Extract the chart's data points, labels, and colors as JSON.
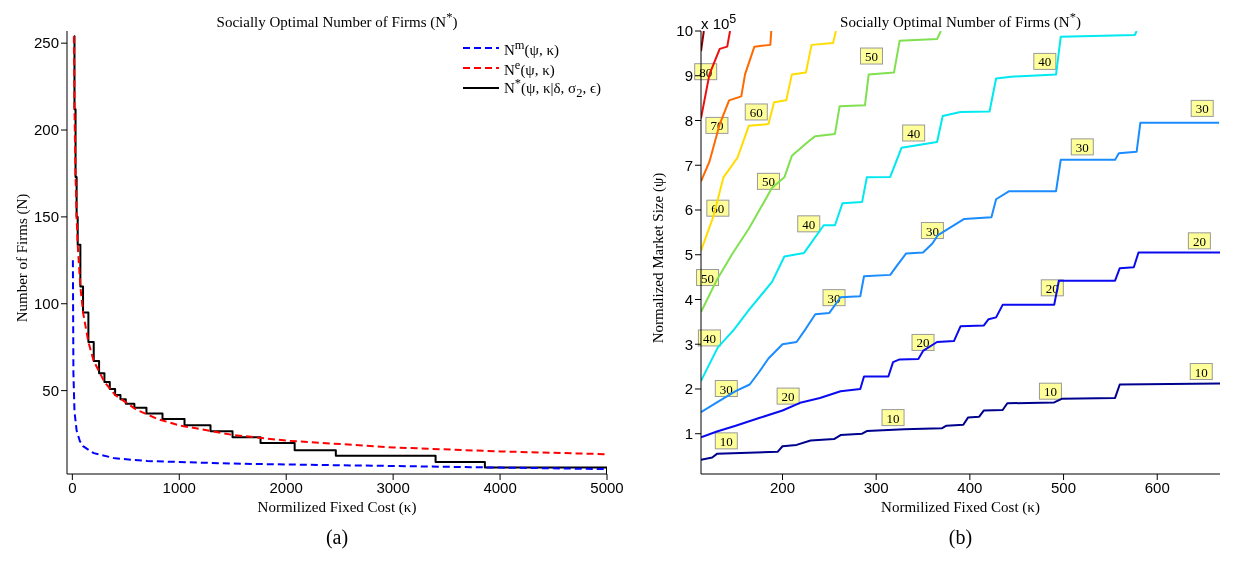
{
  "chart_data": [
    {
      "type": "line",
      "title": "Socially Optimal Number of Firms (N$^{*}$)",
      "xlabel": "Normilized Fixed Cost (κ)",
      "ylabel": "Number of Firms (N)",
      "xlim": [
        -50,
        5000
      ],
      "xticks": [
        0,
        1000,
        2000,
        3000,
        4000,
        5000
      ],
      "ylim": [
        2,
        257
      ],
      "yticks": [
        50,
        100,
        150,
        200,
        250
      ],
      "legend": "top right",
      "annotations": [
        "(a)"
      ],
      "series": [
        {
          "name": "N$^{m}$(ψ, κ)",
          "color": "#0000ff",
          "line_style": "dashed",
          "x": [
            5,
            10,
            20,
            40,
            70,
            100,
            200,
            400,
            700,
            1000,
            1500,
            2000,
            3000,
            4000,
            5000
          ],
          "values": [
            125,
            60,
            38,
            27,
            21,
            18,
            14,
            11,
            9.5,
            8.9,
            8,
            7.5,
            6.6,
            5.7,
            4.8
          ]
        },
        {
          "name": "N$^{e}$(ψ, κ)",
          "color": "#ff0000",
          "line_style": "dashed",
          "x": [
            14,
            20,
            30,
            40,
            50,
            75,
            100,
            150,
            200,
            300,
            400,
            600,
            800,
            1000,
            1500,
            2000,
            3000,
            4000,
            5000
          ],
          "values": [
            254,
            212,
            173,
            150,
            134,
            110,
            95,
            78,
            67,
            55,
            47.5,
            39,
            33.6,
            30,
            24.5,
            21.2,
            17.3,
            15,
            13.4
          ]
        },
        {
          "name": "N$^{*}$(ψ, κ|δ, σ$_{2}$, ϵ)",
          "color": "#000000",
          "type": "step",
          "line_style": "solid",
          "x": [
            14,
            20,
            30,
            40,
            50,
            75,
            100,
            150,
            200,
            250,
            300,
            350,
            400,
            450,
            500,
            580,
            693,
            843,
            1049,
            1292,
            1498,
            1760,
            2079,
            2464,
            3397,
            3858,
            5000
          ],
          "values": [
            254,
            212,
            173,
            150,
            134,
            110,
            95,
            78,
            67,
            60,
            55,
            51,
            47.5,
            45,
            42.5,
            40.2,
            36.8,
            33.6,
            30,
            26.6,
            23.2,
            19.8,
            15.7,
            12.5,
            8.9,
            5.7,
            2
          ]
        }
      ]
    },
    {
      "type": "line",
      "title": "Socially Optimal Number of Firms (N$^{*}$)",
      "xlabel": "Normilized Fixed Cost (κ)",
      "ylabel": "Normalized Market Size (ψ)",
      "xlim": [
        113,
        667
      ],
      "xticks": [
        200,
        300,
        400,
        500,
        600
      ],
      "ylim": [
        0.1,
        10
      ],
      "yticks": [
        1,
        2,
        3,
        4,
        5,
        6,
        7,
        8,
        9,
        10
      ],
      "annotations": [
        "x 10$^{5}$",
        "(b)",
        {
          "text": "10",
          "x": 140,
          "y": 0.55
        },
        {
          "text": "10",
          "x": 318,
          "y": 1.07
        },
        {
          "text": "10",
          "x": 486,
          "y": 1.66
        },
        {
          "text": "10",
          "x": 647,
          "y": 2.1
        },
        {
          "text": "20",
          "x": 206,
          "y": 1.55
        },
        {
          "text": "20",
          "x": 350,
          "y": 2.75
        },
        {
          "text": "20",
          "x": 488,
          "y": 3.97
        },
        {
          "text": "20",
          "x": 645,
          "y": 5.02
        },
        {
          "text": "30",
          "x": 140,
          "y": 1.72
        },
        {
          "text": "30",
          "x": 255,
          "y": 3.75
        },
        {
          "text": "30",
          "x": 360,
          "y": 5.25
        },
        {
          "text": "30",
          "x": 520,
          "y": 7.12
        },
        {
          "text": "30",
          "x": 648,
          "y": 7.98
        },
        {
          "text": "40",
          "x": 122,
          "y": 2.85
        },
        {
          "text": "40",
          "x": 228,
          "y": 5.4
        },
        {
          "text": "40",
          "x": 340,
          "y": 7.43
        },
        {
          "text": "40",
          "x": 480,
          "y": 9.03
        },
        {
          "text": "50",
          "x": 120,
          "y": 4.2
        },
        {
          "text": "50",
          "x": 185,
          "y": 6.35
        },
        {
          "text": "50",
          "x": 295,
          "y": 9.15
        },
        {
          "text": "60",
          "x": 131,
          "y": 5.75
        },
        {
          "text": "60",
          "x": 172,
          "y": 7.9
        },
        {
          "text": "70",
          "x": 130,
          "y": 7.6
        },
        {
          "text": "80",
          "x": 118,
          "y": 8.8
        }
      ],
      "series": [
        {
          "color": "#00008f",
          "x": [
            113,
            125,
            130,
            195,
            200,
            215,
            230,
            255,
            262,
            285,
            290,
            330,
            370,
            375,
            393,
            398,
            410,
            415,
            435,
            440,
            490,
            498,
            555,
            560,
            667
          ],
          "values": [
            0.42,
            0.47,
            0.55,
            0.6,
            0.72,
            0.75,
            0.85,
            0.88,
            0.97,
            1.0,
            1.06,
            1.1,
            1.12,
            1.18,
            1.2,
            1.36,
            1.38,
            1.52,
            1.53,
            1.68,
            1.7,
            1.78,
            1.8,
            2.1,
            2.12
          ]
        },
        {
          "color": "#0a0af0",
          "x": [
            113,
            130,
            150,
            175,
            200,
            220,
            240,
            262,
            283,
            287,
            313,
            318,
            325,
            345,
            350,
            365,
            383,
            390,
            415,
            420,
            428,
            435,
            490,
            495,
            555,
            560,
            575,
            580,
            667
          ],
          "values": [
            0.92,
            1.05,
            1.18,
            1.35,
            1.52,
            1.7,
            1.8,
            1.95,
            2.0,
            2.28,
            2.28,
            2.6,
            2.66,
            2.67,
            2.85,
            3.05,
            3.07,
            3.4,
            3.42,
            3.56,
            3.6,
            3.88,
            3.88,
            4.42,
            4.42,
            4.7,
            4.72,
            5.05,
            5.05
          ]
        },
        {
          "color": "#1a8cff",
          "x": [
            113,
            130,
            150,
            165,
            175,
            185,
            200,
            215,
            225,
            235,
            250,
            262,
            283,
            287,
            315,
            322,
            332,
            350,
            360,
            366,
            394,
            423,
            428,
            442,
            492,
            497,
            555,
            559,
            578,
            582,
            666
          ],
          "values": [
            1.48,
            1.7,
            1.95,
            2.1,
            2.38,
            2.68,
            3.0,
            3.05,
            3.35,
            3.67,
            3.7,
            4.05,
            4.07,
            4.52,
            4.55,
            4.75,
            5.03,
            5.05,
            5.25,
            5.44,
            5.8,
            5.84,
            6.24,
            6.42,
            6.42,
            7.12,
            7.12,
            7.27,
            7.3,
            7.95,
            7.95
          ]
        },
        {
          "color": "#00e8f0",
          "x": [
            113,
            131,
            148,
            164,
            189,
            202,
            223,
            244,
            256,
            264,
            285,
            290,
            315,
            327,
            365,
            371,
            390,
            421,
            428,
            444,
            492,
            497,
            576,
            578
          ],
          "values": [
            2.18,
            2.93,
            3.32,
            3.76,
            4.4,
            4.96,
            5.04,
            5.66,
            5.66,
            6.15,
            6.18,
            6.73,
            6.74,
            7.39,
            7.52,
            8.1,
            8.19,
            8.2,
            8.94,
            8.98,
            9.03,
            9.87,
            9.91,
            10
          ]
        },
        {
          "color": "#80e050",
          "x": [
            113,
            130,
            147,
            164,
            176,
            189,
            202,
            210,
            227,
            235,
            256,
            261,
            288,
            292,
            319,
            325,
            365,
            369
          ],
          "values": [
            3.72,
            4.44,
            5.04,
            5.58,
            6.02,
            6.5,
            6.73,
            7.21,
            7.52,
            7.65,
            7.7,
            8.32,
            8.34,
            9.03,
            9.07,
            9.78,
            9.82,
            10
          ]
        },
        {
          "color": "#ffdd00",
          "x": [
            113,
            126,
            137,
            152,
            164,
            185,
            191,
            204,
            210,
            225,
            231,
            254,
            257
          ],
          "values": [
            5.09,
            5.84,
            6.73,
            7.17,
            7.88,
            7.92,
            8.41,
            8.45,
            9.03,
            9.07,
            9.69,
            9.73,
            10
          ]
        },
        {
          "color": "#ff6a00",
          "x": [
            113,
            122,
            133,
            143,
            156,
            160,
            170,
            187,
            188
          ],
          "values": [
            6.64,
            7.08,
            7.92,
            8.45,
            8.54,
            9.03,
            9.65,
            9.69,
            10
          ]
        },
        {
          "color": "#ee1010",
          "x": [
            113,
            122,
            133,
            141,
            144
          ],
          "values": [
            8.05,
            9.03,
            9.6,
            9.65,
            10
          ]
        },
        {
          "color": "#900000",
          "x": [
            113,
            116
          ],
          "values": [
            9.55,
            10
          ]
        }
      ]
    }
  ]
}
